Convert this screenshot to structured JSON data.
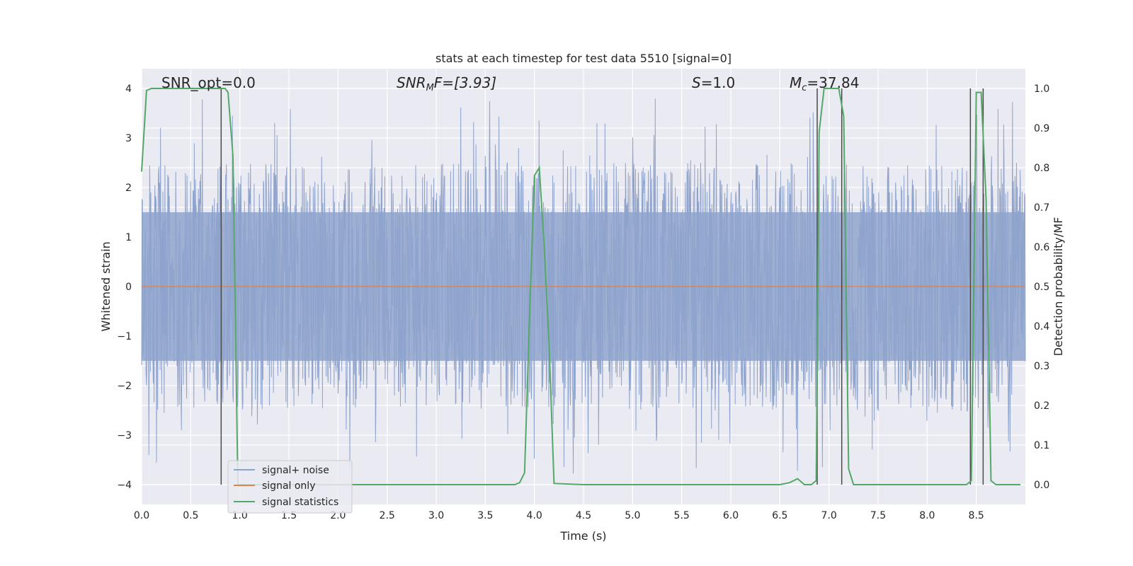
{
  "chart_data": {
    "type": "line",
    "title": "stats at each timestep for test data 5510 [signal=0]",
    "xlabel": "Time (s)",
    "ylabel": "Whitened strain",
    "y2label": "Detection probability/MF",
    "xlim": [
      0.0,
      9.0
    ],
    "ylim": [
      -4.4,
      4.4
    ],
    "y2lim": [
      -0.05,
      1.05
    ],
    "grid": true,
    "legend_position": "bottom-left",
    "xticks": [
      "0.0",
      "0.5",
      "1.0",
      "1.5",
      "2.0",
      "2.5",
      "3.0",
      "3.5",
      "4.0",
      "4.5",
      "5.0",
      "5.5",
      "6.0",
      "6.5",
      "7.0",
      "7.5",
      "8.0",
      "8.5"
    ],
    "yticks": [
      "4",
      "3",
      "2",
      "1",
      "0",
      "−1",
      "−2",
      "−3",
      "−4"
    ],
    "y2ticks": [
      "1.0",
      "0.9",
      "0.8",
      "0.7",
      "0.6",
      "0.5",
      "0.4",
      "0.3",
      "0.2",
      "0.1",
      "0.0"
    ],
    "annotations": {
      "snr_opt": "SNR_opt=0.0",
      "snr_mf_main": "SNR",
      "snr_mf_sub": "M",
      "snr_mf_rest": "F=[3.93]",
      "s_main": "S",
      "s_rest": "=1.0",
      "mc_main": "M",
      "mc_sub": "c",
      "mc_rest": "=37.84"
    },
    "series": [
      {
        "name": "signal+ noise",
        "color": "#8fa4cd",
        "note": "dense whitened noise, amplitude ~±1.5 with spikes up to ~±3.9"
      },
      {
        "name": "signal only",
        "color": "#dd8452",
        "values_constant": 0.0
      },
      {
        "name": "signal statistics",
        "color": "#55a868",
        "axis": "right",
        "x": [
          0.0,
          0.05,
          0.1,
          0.15,
          0.2,
          0.25,
          0.3,
          0.35,
          0.4,
          0.45,
          0.5,
          0.55,
          0.6,
          0.65,
          0.7,
          0.75,
          0.8,
          0.85,
          0.88,
          0.93,
          0.98,
          1.03,
          1.5,
          2.0,
          2.5,
          3.0,
          3.5,
          3.8,
          3.85,
          3.9,
          3.95,
          4.0,
          4.05,
          4.1,
          4.15,
          4.2,
          4.5,
          5.0,
          5.5,
          6.0,
          6.5,
          6.6,
          6.68,
          6.75,
          6.82,
          6.87,
          6.9,
          6.95,
          7.0,
          7.05,
          7.1,
          7.15,
          7.2,
          7.25,
          7.5,
          8.0,
          8.3,
          8.4,
          8.45,
          8.5,
          8.55,
          8.6,
          8.65,
          8.7,
          8.95
        ],
        "y": [
          0.79,
          0.995,
          1.0,
          1.0,
          1.0,
          1.0,
          1.0,
          1.0,
          1.0,
          1.0,
          1.0,
          1.0,
          1.0,
          1.0,
          1.0,
          1.0,
          1.0,
          1.0,
          0.99,
          0.83,
          0.0,
          0.0,
          0.0,
          0.0,
          0.0,
          0.0,
          0.0,
          0.0,
          0.005,
          0.03,
          0.42,
          0.78,
          0.8,
          0.6,
          0.35,
          0.003,
          0.0,
          0.0,
          0.0,
          0.0,
          0.0,
          0.005,
          0.015,
          0.0,
          0.0,
          0.01,
          0.89,
          1.0,
          1.0,
          1.0,
          1.0,
          0.93,
          0.04,
          0.0,
          0.0,
          0.0,
          0.0,
          0.0,
          0.01,
          0.99,
          0.99,
          0.72,
          0.01,
          0.0,
          0.0
        ]
      }
    ],
    "vlines_x": [
      0.81,
      6.88,
      7.13,
      8.44,
      8.57
    ]
  },
  "legend": {
    "items": [
      {
        "label": "signal+ noise",
        "color": "#8fa4cd"
      },
      {
        "label": "signal only",
        "color": "#dd8452"
      },
      {
        "label": "signal statistics",
        "color": "#55a868"
      }
    ]
  }
}
